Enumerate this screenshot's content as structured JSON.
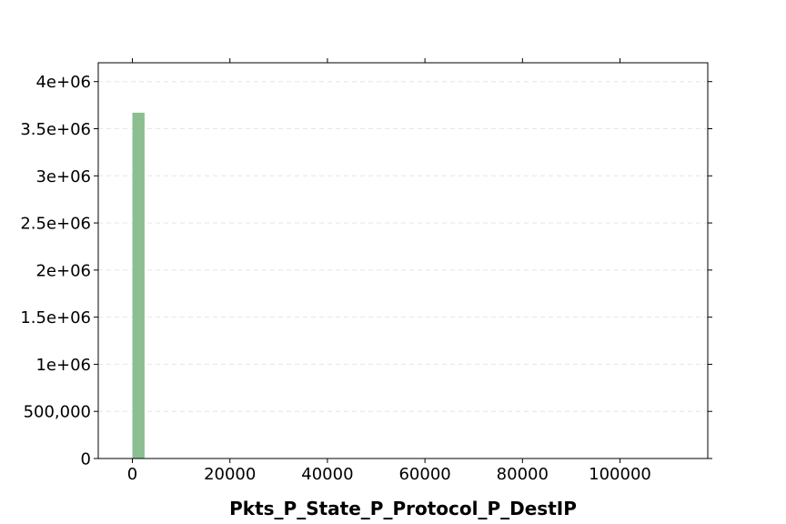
{
  "chart_data": {
    "type": "bar",
    "title": "",
    "xlabel": "Pkts_P_State_P_Protocol_P_DestIP",
    "ylabel": "",
    "xlim": [
      -7000,
      118000
    ],
    "ylim": [
      0,
      4200000
    ],
    "grid": "horizontal dashed",
    "legend": "none",
    "x_ticks": [
      {
        "value": 0,
        "label": "0"
      },
      {
        "value": 20000,
        "label": "20000"
      },
      {
        "value": 40000,
        "label": "40000"
      },
      {
        "value": 60000,
        "label": "60000"
      },
      {
        "value": 80000,
        "label": "80000"
      },
      {
        "value": 100000,
        "label": "100000"
      }
    ],
    "y_ticks": [
      {
        "value": 0,
        "label": "0"
      },
      {
        "value": 500000,
        "label": "500,000"
      },
      {
        "value": 1000000,
        "label": "1e+06"
      },
      {
        "value": 1500000,
        "label": "1.5e+06"
      },
      {
        "value": 2000000,
        "label": "2e+06"
      },
      {
        "value": 2500000,
        "label": "2.5e+06"
      },
      {
        "value": 3000000,
        "label": "3e+06"
      },
      {
        "value": 3500000,
        "label": "3.5e+06"
      },
      {
        "value": 4000000,
        "label": "4e+06"
      }
    ],
    "bins": [
      {
        "x0": 0,
        "x1": 2500,
        "value": 3670000
      }
    ],
    "colors": {
      "bar": "#8bbf91",
      "grid": "#e6e6e6",
      "axis": "#000000"
    }
  }
}
